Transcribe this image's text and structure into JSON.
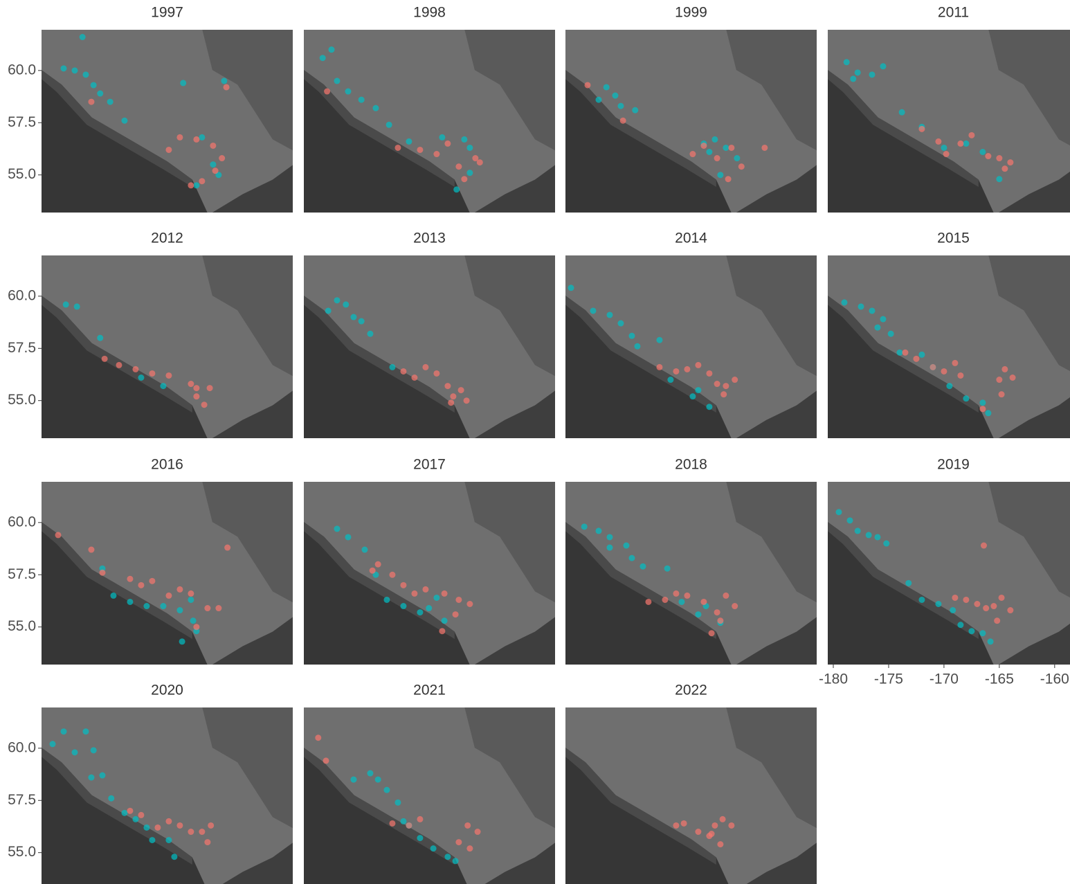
{
  "chart_data": {
    "type": "scatter",
    "xlim": [
      -180.5,
      -157.8
    ],
    "ylim": [
      53.2,
      61.95
    ],
    "xticks": [
      -180,
      -175,
      -170,
      -165,
      -160
    ],
    "yticks": [
      {
        "value": 55,
        "label": "55.0"
      },
      {
        "value": 57.5,
        "label": "57.5"
      },
      {
        "value": 60,
        "label": "60.0"
      }
    ],
    "panels": [
      {
        "title": "1997",
        "series": [
          {
            "color": "#00BFC4",
            "x": [
              -178.5,
              -177.5,
              -176.5,
              -175.8,
              -175.2,
              -176.8,
              -174.3,
              -173,
              -167.7,
              -164,
              -166,
              -165,
              -164.5,
              -166.5
            ],
            "y": [
              60.1,
              60.0,
              59.8,
              59.3,
              58.9,
              61.6,
              58.5,
              57.6,
              59.4,
              59.5,
              56.8,
              55.5,
              55.0,
              54.5
            ]
          },
          {
            "color": "#F8766D",
            "x": [
              -176,
              -169,
              -168,
              -166.5,
              -165,
              -164.2,
              -164.8,
              -166,
              -163.8,
              -167
            ],
            "y": [
              58.5,
              56.2,
              56.8,
              56.7,
              56.4,
              55.8,
              55.2,
              54.7,
              59.2,
              54.5
            ]
          }
        ]
      },
      {
        "title": "1998",
        "series": [
          {
            "color": "#00BFC4",
            "x": [
              -178.8,
              -178,
              -177.5,
              -176.5,
              -175.3,
              -174,
              -172.8,
              -171,
              -168,
              -166,
              -165.5,
              -166.7,
              -165.5
            ],
            "y": [
              60.6,
              61.0,
              59.5,
              59.0,
              58.6,
              58.2,
              57.4,
              56.6,
              56.8,
              56.7,
              56.3,
              54.3,
              55.1
            ]
          },
          {
            "color": "#F8766D",
            "x": [
              -178.4,
              -172,
              -170,
              -168.5,
              -167.5,
              -166.5,
              -165,
              -166,
              -164.6
            ],
            "y": [
              59.0,
              56.3,
              56.2,
              56.0,
              56.5,
              55.4,
              55.8,
              54.8,
              55.6
            ]
          }
        ]
      },
      {
        "title": "1999",
        "series": [
          {
            "color": "#00BFC4",
            "x": [
              -177.5,
              -176.8,
              -176,
              -175.5,
              -174.2,
              -168,
              -167,
              -166,
              -165,
              -166.5,
              -167.5
            ],
            "y": [
              58.6,
              59.2,
              58.8,
              58.3,
              58.1,
              56.5,
              56.7,
              56.3,
              55.8,
              55.0,
              56.1
            ]
          },
          {
            "color": "#F8766D",
            "x": [
              -178.5,
              -175.3,
              -169,
              -168,
              -166.8,
              -165.5,
              -164.6,
              -165.8,
              -162.5
            ],
            "y": [
              59.3,
              57.6,
              56.0,
              56.4,
              55.8,
              56.3,
              55.4,
              54.8,
              56.3
            ]
          }
        ]
      },
      {
        "title": "2011",
        "series": [
          {
            "color": "#00BFC4",
            "x": [
              -178.8,
              -177.8,
              -176.5,
              -175.5,
              -178.2,
              -173.8,
              -172,
              -170,
              -168,
              -166.5,
              -165
            ],
            "y": [
              60.4,
              59.9,
              59.8,
              60.2,
              59.6,
              58.0,
              57.3,
              56.3,
              56.5,
              56.1,
              54.8
            ]
          },
          {
            "color": "#F8766D",
            "x": [
              -172,
              -170.5,
              -169.8,
              -168.5,
              -167.5,
              -166,
              -165,
              -164.5,
              -164
            ],
            "y": [
              57.2,
              56.6,
              56.0,
              56.5,
              56.9,
              55.9,
              55.8,
              55.3,
              55.6
            ]
          }
        ]
      },
      {
        "title": "2012",
        "series": [
          {
            "color": "#00BFC4",
            "x": [
              -178.3,
              -177.3,
              -175.2,
              -171.5,
              -169.5
            ],
            "y": [
              59.6,
              59.5,
              58.0,
              56.1,
              55.7
            ]
          },
          {
            "color": "#F8766D",
            "x": [
              -174.8,
              -173.5,
              -172,
              -170.5,
              -169,
              -167,
              -166.5,
              -165.8,
              -166.5,
              -165.3
            ],
            "y": [
              57.0,
              56.7,
              56.5,
              56.3,
              56.2,
              55.8,
              55.2,
              54.8,
              55.6,
              55.6
            ]
          }
        ]
      },
      {
        "title": "2013",
        "series": [
          {
            "color": "#00BFC4",
            "x": [
              -178.3,
              -177.5,
              -176.7,
              -176,
              -175.3,
              -174.5,
              -172.5
            ],
            "y": [
              59.3,
              59.8,
              59.6,
              59.0,
              58.8,
              58.2,
              56.6
            ]
          },
          {
            "color": "#F8766D",
            "x": [
              -171.5,
              -170.5,
              -169.5,
              -168.5,
              -167.5,
              -167,
              -166.3,
              -165.8,
              -167.2
            ],
            "y": [
              56.4,
              56.1,
              56.6,
              56.3,
              55.7,
              55.2,
              55.5,
              55.0,
              54.9
            ]
          }
        ]
      },
      {
        "title": "2014",
        "series": [
          {
            "color": "#00BFC4",
            "x": [
              -180,
              -178,
              -176.5,
              -175.5,
              -174.5,
              -174,
              -172,
              -171,
              -168.5,
              -167.5,
              -169
            ],
            "y": [
              60.4,
              59.3,
              59.1,
              58.7,
              58.1,
              57.6,
              57.9,
              56.0,
              55.5,
              54.7,
              55.2
            ]
          },
          {
            "color": "#F8766D",
            "x": [
              -172,
              -170.5,
              -169.5,
              -168.5,
              -167.5,
              -166.8,
              -166,
              -165.2,
              -166.2
            ],
            "y": [
              56.6,
              56.4,
              56.5,
              56.7,
              56.3,
              55.8,
              55.7,
              56.0,
              55.3
            ]
          }
        ]
      },
      {
        "title": "2015",
        "series": [
          {
            "color": "#00BFC4",
            "x": [
              -179,
              -177.5,
              -176.5,
              -175.5,
              -174.8,
              -176,
              -174,
              -172,
              -171,
              -169.5,
              -168,
              -166.5,
              -166
            ],
            "y": [
              59.7,
              59.5,
              59.3,
              58.9,
              58.2,
              58.5,
              57.3,
              57.2,
              56.6,
              55.7,
              55.1,
              54.9,
              54.4
            ]
          },
          {
            "color": "#F8766D",
            "x": [
              -173.5,
              -172.5,
              -171,
              -170,
              -169,
              -168.5,
              -165,
              -164.5,
              -163.8,
              -164.8,
              -166.5
            ],
            "y": [
              57.3,
              57.0,
              56.6,
              56.4,
              56.8,
              56.2,
              56.0,
              56.5,
              56.1,
              55.3,
              54.6
            ]
          }
        ]
      },
      {
        "title": "2016",
        "series": [
          {
            "color": "#00BFC4",
            "x": [
              -175,
              -174,
              -172.5,
              -171,
              -169.5,
              -168,
              -167,
              -166.8,
              -166.5,
              -167.8
            ],
            "y": [
              57.8,
              56.5,
              56.2,
              56.0,
              56.0,
              55.8,
              56.3,
              55.3,
              54.8,
              54.3
            ]
          },
          {
            "color": "#F8766D",
            "x": [
              -179,
              -176,
              -175,
              -172.5,
              -171.5,
              -170.5,
              -169,
              -168,
              -167,
              -165.5,
              -164.5,
              -163.7,
              -166.5
            ],
            "y": [
              59.4,
              58.7,
              57.6,
              57.3,
              57.0,
              57.2,
              56.5,
              56.8,
              56.6,
              55.9,
              55.9,
              58.8,
              55.0
            ]
          }
        ]
      },
      {
        "title": "2017",
        "series": [
          {
            "color": "#00BFC4",
            "x": [
              -177.5,
              -176.5,
              -175,
              -174,
              -173,
              -171.5,
              -170,
              -169.2,
              -168.5,
              -167.8
            ],
            "y": [
              59.7,
              59.3,
              58.7,
              57.5,
              56.3,
              56.0,
              55.7,
              55.9,
              56.4,
              55.3
            ]
          },
          {
            "color": "#F8766D",
            "x": [
              -174.3,
              -173.8,
              -172.5,
              -171.5,
              -170.5,
              -169.5,
              -167.8,
              -166.5,
              -165.5,
              -166.8,
              -168
            ],
            "y": [
              57.7,
              58.0,
              57.5,
              57.0,
              56.6,
              56.8,
              56.6,
              56.3,
              56.1,
              55.6,
              54.8
            ]
          }
        ]
      },
      {
        "title": "2018",
        "series": [
          {
            "color": "#00BFC4",
            "x": [
              -178.8,
              -177.5,
              -176.5,
              -176.5,
              -175,
              -174.5,
              -173.5,
              -171.3,
              -170,
              -167.8,
              -166.5,
              -168.5
            ],
            "y": [
              59.8,
              59.6,
              59.3,
              58.8,
              58.9,
              58.3,
              57.9,
              57.8,
              56.2,
              56.0,
              55.2,
              55.6
            ]
          },
          {
            "color": "#F8766D",
            "x": [
              -173,
              -171.5,
              -170.5,
              -169.5,
              -168,
              -166.8,
              -166,
              -165.2,
              -166.5,
              -167.3
            ],
            "y": [
              56.2,
              56.3,
              56.6,
              56.5,
              56.2,
              55.7,
              56.5,
              56.0,
              55.3,
              54.7
            ]
          }
        ]
      },
      {
        "title": "2019",
        "series": [
          {
            "color": "#00BFC4",
            "x": [
              -179.5,
              -178.5,
              -177.8,
              -176.8,
              -176,
              -175.2,
              -173.2,
              -172,
              -170.5,
              -169.2,
              -168.5,
              -167.5,
              -166.5,
              -165.8
            ],
            "y": [
              60.5,
              60.1,
              59.6,
              59.4,
              59.3,
              59.0,
              57.1,
              56.3,
              56.1,
              55.8,
              55.1,
              54.8,
              54.7,
              54.3
            ]
          },
          {
            "color": "#F8766D",
            "x": [
              -166.4,
              -169,
              -168,
              -167,
              -166.2,
              -165.5,
              -164.8,
              -164,
              -165.2
            ],
            "y": [
              58.9,
              56.4,
              56.3,
              56.1,
              55.9,
              56.0,
              56.4,
              55.8,
              55.3
            ]
          }
        ]
      },
      {
        "title": "2020",
        "series": [
          {
            "color": "#00BFC4",
            "x": [
              -179.5,
              -178.5,
              -177.5,
              -176.5,
              -175.8,
              -176,
              -175,
              -174.2,
              -173,
              -172,
              -171,
              -170.5,
              -169,
              -168.5
            ],
            "y": [
              60.2,
              60.8,
              59.8,
              60.8,
              59.9,
              58.6,
              58.7,
              57.6,
              56.9,
              56.6,
              56.2,
              55.6,
              55.6,
              54.8
            ]
          },
          {
            "color": "#F8766D",
            "x": [
              -172.5,
              -171.5,
              -170,
              -169,
              -168,
              -167,
              -166,
              -165.5,
              -165.2
            ],
            "y": [
              57.0,
              56.8,
              56.2,
              56.5,
              56.3,
              56.0,
              56.0,
              55.5,
              56.3
            ]
          }
        ]
      },
      {
        "title": "2021",
        "series": [
          {
            "color": "#00BFC4",
            "x": [
              -176,
              -174.5,
              -173.8,
              -173,
              -172,
              -171.5,
              -171,
              -170,
              -168.8,
              -167.5,
              -166.8
            ],
            "y": [
              58.5,
              58.8,
              58.5,
              58.0,
              57.4,
              56.5,
              56.3,
              55.7,
              55.2,
              54.8,
              54.6
            ]
          },
          {
            "color": "#F8766D",
            "x": [
              -179.2,
              -178.5,
              -172.5,
              -171,
              -170,
              -166.5,
              -165.7,
              -164.8,
              -165.5
            ],
            "y": [
              60.5,
              59.4,
              56.4,
              56.3,
              56.6,
              55.5,
              56.3,
              56.0,
              55.2
            ]
          }
        ]
      },
      {
        "title": "2022",
        "series": [
          {
            "color": "#F8766D",
            "x": [
              -170.5,
              -169.8,
              -168.5,
              -167.5,
              -167,
              -166.3,
              -165.5,
              -166.5,
              -167.3
            ],
            "y": [
              56.3,
              56.4,
              56.0,
              55.8,
              56.3,
              56.6,
              56.3,
              55.4,
              55.9
            ]
          }
        ]
      }
    ]
  }
}
